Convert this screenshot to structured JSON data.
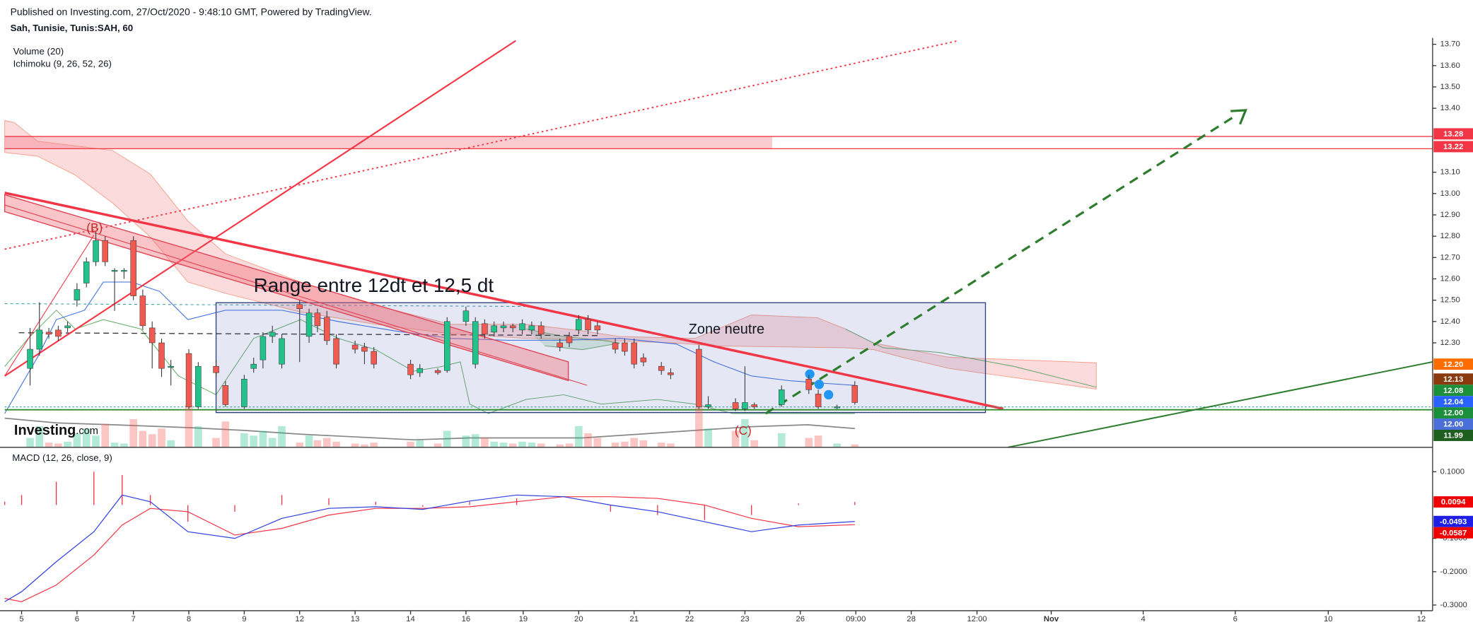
{
  "chart_data": {
    "type": "candlestick",
    "subtitle": "Published on Investing.com, 27/Oct/2020 - 9:48:10 GMT, Powered by TradingView.",
    "title": "Sah, Tunisie, Tunis:SAH, 60",
    "indicators": [
      "Volume (20)",
      "Ichimoku (9, 26, 52, 26)"
    ],
    "annotations": [
      "Range entre 12dt et 12,5 dt",
      "Zone neutre",
      "(B)",
      "(C)"
    ],
    "logo": [
      "Investing",
      ".com"
    ],
    "colors": {
      "up": "#22c38b",
      "down": "#f05a50"
    },
    "x": [
      0.92,
      1.93,
      2.95,
      3.97,
      4.98,
      6.0,
      7.02,
      8.04,
      9.05,
      10.07,
      11.09,
      12.11,
      13.12,
      14.14,
      15.16,
      16.17,
      18.11,
      19.13,
      21.06,
      22.08,
      24.11,
      25.13,
      26.14,
      27.16,
      28.18,
      30.11,
      31.13,
      32.04,
      33.06,
      34.08,
      36.11,
      37.13,
      38.15,
      42.12,
      43.13,
      45.07,
      46.08,
      48.12,
      49.14,
      50.15,
      51.17,
      52.19,
      53.2,
      54.22,
      55.24,
      56.26,
      58.29,
      59.31,
      60.33,
      61.34,
      62.36,
      64.29,
      65.31,
      66.33,
      67.34,
      69.28,
      70.29,
      73.35,
      74.36,
      77.31,
      78.33,
      79.35,
      82.3,
      85.25,
      86.27,
      88.3,
      90.23
    ],
    "open": [
      12.18,
      12.27,
      12.35,
      12.36,
      12.37,
      12.5,
      12.58,
      12.68,
      12.78,
      12.64,
      12.64,
      12.78,
      12.52,
      12.37,
      12.3,
      12.19,
      12.25,
      12.0,
      12.19,
      12.1,
      12.0,
      12.18,
      12.22,
      12.33,
      12.2,
      12.48,
      12.33,
      12.44,
      12.42,
      12.32,
      12.29,
      12.28,
      12.26,
      12.2,
      12.16,
      12.17,
      12.17,
      12.4,
      12.2,
      12.39,
      12.35,
      12.37,
      12.38,
      12.36,
      12.36,
      12.38,
      12.3,
      12.33,
      12.36,
      12.41,
      12.38,
      12.3,
      12.3,
      12.3,
      12.23,
      12.19,
      12.16,
      12.27,
      12.0,
      12.02,
      11.99,
      12.01,
      12.01,
      12.13,
      12.06,
      12.0,
      12.1
    ],
    "high": [
      12.37,
      12.49,
      12.37,
      12.38,
      12.4,
      12.58,
      12.7,
      12.82,
      12.8,
      12.65,
      12.65,
      12.8,
      12.55,
      12.4,
      12.32,
      12.22,
      12.27,
      12.21,
      12.22,
      12.12,
      12.15,
      12.23,
      12.35,
      12.38,
      12.34,
      12.5,
      12.46,
      12.46,
      12.45,
      12.34,
      12.31,
      12.3,
      12.28,
      12.22,
      12.2,
      12.18,
      12.42,
      12.47,
      12.42,
      12.41,
      12.4,
      12.4,
      12.39,
      12.41,
      12.4,
      12.4,
      12.32,
      12.35,
      12.43,
      12.43,
      12.4,
      12.32,
      12.32,
      12.32,
      12.25,
      12.21,
      12.18,
      12.29,
      12.05,
      12.04,
      12.19,
      12.02,
      12.1,
      12.15,
      12.08,
      12.01,
      12.12
    ],
    "low": [
      12.1,
      12.24,
      12.32,
      12.31,
      12.35,
      12.47,
      12.56,
      12.66,
      12.66,
      12.45,
      12.6,
      12.5,
      12.36,
      12.18,
      12.14,
      12.1,
      11.99,
      11.99,
      12.14,
      12.0,
      11.99,
      12.16,
      12.18,
      12.3,
      12.18,
      12.21,
      12.3,
      12.35,
      12.29,
      12.18,
      12.25,
      12.2,
      12.18,
      12.13,
      12.14,
      12.15,
      12.16,
      12.38,
      12.18,
      12.32,
      12.33,
      12.35,
      12.35,
      12.34,
      12.34,
      12.32,
      12.26,
      12.28,
      12.34,
      12.34,
      12.34,
      12.25,
      12.24,
      12.18,
      12.19,
      12.15,
      12.13,
      11.99,
      11.99,
      11.98,
      11.98,
      11.99,
      12.0,
      12.06,
      11.99,
      11.99,
      12.01
    ],
    "close": [
      12.27,
      12.36,
      12.34,
      12.33,
      12.38,
      12.55,
      12.68,
      12.78,
      12.68,
      12.64,
      12.64,
      12.52,
      12.38,
      12.3,
      12.18,
      12.19,
      12.0,
      12.19,
      12.16,
      12.01,
      12.13,
      12.2,
      12.33,
      12.35,
      12.32,
      12.46,
      12.44,
      12.38,
      12.31,
      12.2,
      12.27,
      12.26,
      12.2,
      12.15,
      12.18,
      12.16,
      12.4,
      12.45,
      12.4,
      12.34,
      12.38,
      12.38,
      12.37,
      12.39,
      12.38,
      12.34,
      12.28,
      12.3,
      12.41,
      12.36,
      12.36,
      12.27,
      12.26,
      12.2,
      12.21,
      12.17,
      12.15,
      12.0,
      12.01,
      11.99,
      12.02,
      12.0,
      12.08,
      12.08,
      12.0,
      12.0,
      12.02
    ],
    "volume": [
      20,
      45,
      10,
      8,
      12,
      30,
      40,
      25,
      50,
      10,
      8,
      60,
      35,
      28,
      40,
      15,
      90,
      45,
      20,
      55,
      30,
      25,
      35,
      20,
      45,
      10,
      25,
      15,
      20,
      12,
      8,
      6,
      10,
      12,
      15,
      8,
      35,
      25,
      28,
      20,
      12,
      10,
      8,
      12,
      10,
      8,
      6,
      8,
      45,
      30,
      20,
      10,
      12,
      20,
      15,
      10,
      8,
      85,
      40,
      35,
      60,
      15,
      30,
      20,
      25,
      8,
      6
    ],
    "xlim": [
      -1.83,
      152.8
    ],
    "xticks": [
      {
        "value": 0,
        "label": "5"
      },
      {
        "value": 6.0,
        "label": "6"
      },
      {
        "value": 12.11,
        "label": "7"
      },
      {
        "value": 18.11,
        "label": "8"
      },
      {
        "value": 24.11,
        "label": "9"
      },
      {
        "value": 30.11,
        "label": "12"
      },
      {
        "value": 36.11,
        "label": "13"
      },
      {
        "value": 42.12,
        "label": "14"
      },
      {
        "value": 48.12,
        "label": "16"
      },
      {
        "value": 54.32,
        "label": "19"
      },
      {
        "value": 60.33,
        "label": "20"
      },
      {
        "value": 66.33,
        "label": "21"
      },
      {
        "value": 72.33,
        "label": "22"
      },
      {
        "value": 78.33,
        "label": "23"
      },
      {
        "value": 84.33,
        "label": "26"
      },
      {
        "value": 90.34,
        "label": "09:00"
      },
      {
        "value": 96.34,
        "label": "28"
      },
      {
        "value": 103.46,
        "label": "12:00"
      },
      {
        "value": 111.5,
        "label": "Nov"
      },
      {
        "value": 121.46,
        "label": "4"
      },
      {
        "value": 131.43,
        "label": "6"
      },
      {
        "value": 141.5,
        "label": "10"
      },
      {
        "value": 151.58,
        "label": "12"
      }
    ],
    "ylim": [
      11.81,
      13.73
    ],
    "yticks": [
      {
        "value": 13.7,
        "label": "13.70"
      },
      {
        "value": 13.6,
        "label": "13.60"
      },
      {
        "value": 13.5,
        "label": "13.50"
      },
      {
        "value": 13.4,
        "label": "13.40"
      },
      {
        "value": 13.1,
        "label": "13.10"
      },
      {
        "value": 13.0,
        "label": "13.00"
      },
      {
        "value": 12.9,
        "label": "12.90"
      },
      {
        "value": 12.8,
        "label": "12.80"
      },
      {
        "value": 12.7,
        "label": "12.70"
      },
      {
        "value": 12.6,
        "label": "12.60"
      },
      {
        "value": 12.5,
        "label": "12.50"
      },
      {
        "value": 12.4,
        "label": "12.40"
      },
      {
        "value": 12.3,
        "label": "12.30"
      }
    ],
    "price_labels": [
      {
        "value": 13.28,
        "label": "13.28",
        "color": "#f23645"
      },
      {
        "value": 13.22,
        "label": "13.22",
        "color": "#f23645"
      },
      {
        "value": 12.2,
        "label": "12.20",
        "color": "#ff6d00"
      },
      {
        "value": 12.13,
        "label": "12.13",
        "color": "#8b3a0f"
      },
      {
        "value": 12.08,
        "label": "12.08",
        "color": "#1b8f3a"
      },
      {
        "value": 12.04,
        "label": "12.04",
        "color": "#2962ff"
      },
      {
        "value": 12.0,
        "label": "12.00",
        "color": "#1b8f3a"
      },
      {
        "value": 12.0,
        "label": "12.00",
        "color": "#4a6fd8"
      },
      {
        "value": 11.99,
        "label": "11.99",
        "color": "#1e5e1e"
      }
    ],
    "macd": {
      "title": "MACD (12, 26, close, 9)",
      "x": [
        -1.83,
        0,
        3.76,
        7.83,
        10.89,
        13.94,
        18.01,
        23.09,
        28.18,
        33.27,
        38.35,
        43.44,
        48.52,
        53.61,
        58.7,
        63.78,
        68.87,
        73.96,
        79.04,
        84.13,
        90.23
      ],
      "macd": [
        -0.29,
        -0.26,
        -0.17,
        -0.08,
        0.03,
        0.01,
        -0.08,
        -0.1,
        -0.04,
        -0.01,
        -0.005,
        -0.013,
        0.012,
        0.03,
        0.025,
        0.0,
        -0.02,
        -0.05,
        -0.08,
        -0.06,
        -0.0493
      ],
      "signal": [
        -0.28,
        -0.29,
        -0.24,
        -0.15,
        -0.06,
        -0.01,
        -0.02,
        -0.09,
        -0.07,
        -0.03,
        -0.01,
        -0.01,
        -0.005,
        0.01,
        0.025,
        0.025,
        0.02,
        0.0,
        -0.04,
        -0.065,
        -0.0587
      ],
      "histogram": [
        0.01,
        0.03,
        0.07,
        0.1,
        0.09,
        0.03,
        -0.05,
        -0.02,
        0.03,
        0.02,
        0.01,
        -0.005,
        0.01,
        0.02,
        0.0,
        -0.02,
        -0.03,
        -0.045,
        -0.03,
        0.005,
        0.0094
      ],
      "colors": {
        "macd": "#2f3fe0",
        "signal": "#f23645",
        "histogram": "#f23645"
      },
      "ylim": [
        -0.317,
        0.1676
      ],
      "yticks": [
        {
          "value": 0.1,
          "label": "0.1000"
        },
        {
          "value": -0.1,
          "label": "-0.1000"
        },
        {
          "value": -0.2,
          "label": "-0.2000"
        },
        {
          "value": -0.3,
          "label": "-0.3000"
        }
      ],
      "price_labels": [
        {
          "value": 0.0094,
          "label": "0.0094",
          "color": "#f00000"
        },
        {
          "value": -0.0493,
          "label": "-0.0493",
          "color": "#1e1ee6"
        },
        {
          "value": -0.0587,
          "label": "-0.0587",
          "color": "#f00000"
        }
      ]
    }
  }
}
